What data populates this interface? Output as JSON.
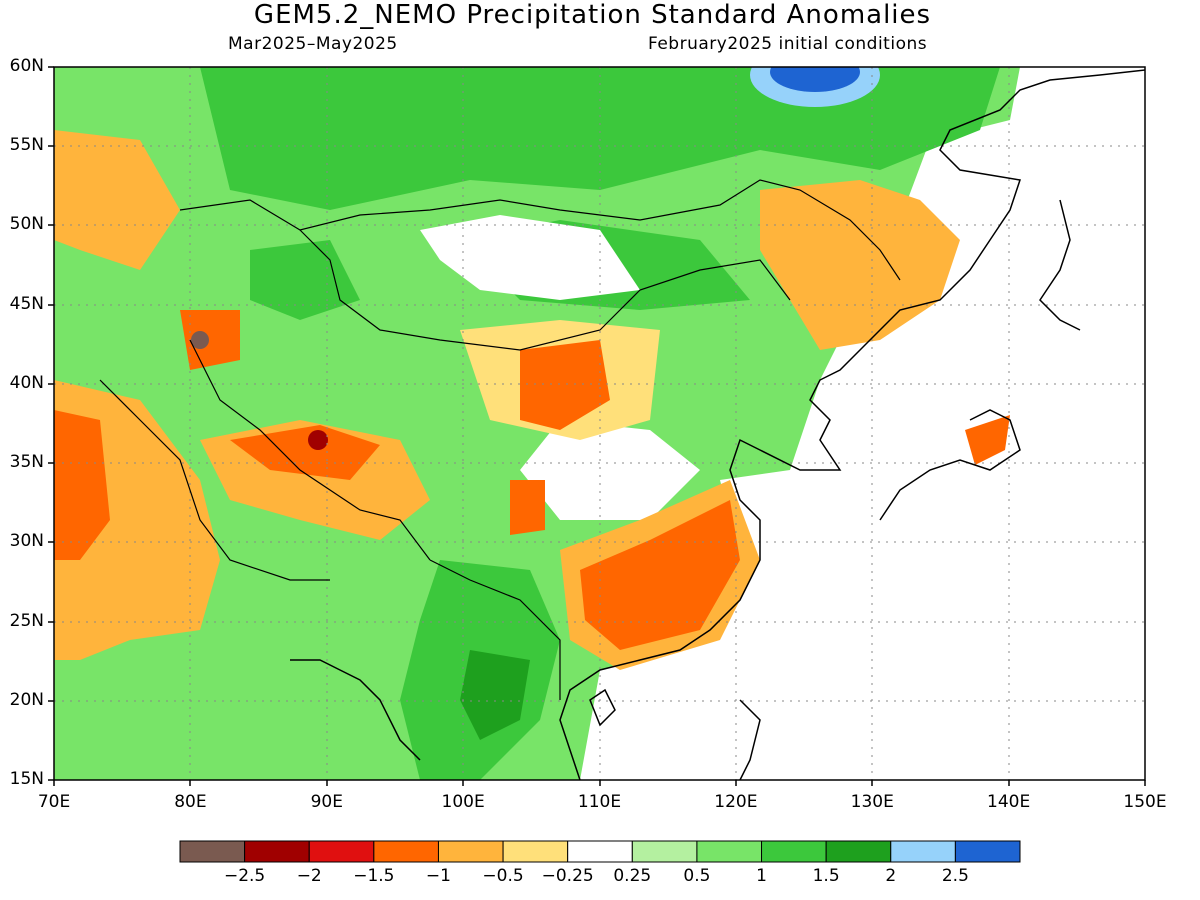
{
  "title": "GEM5.2_NEMO Precipitation Standard Anomalies",
  "subtitle_left": "Mar2025–May2025",
  "subtitle_right": "February2025 initial conditions",
  "lat_labels": [
    "60N",
    "55N",
    "50N",
    "45N",
    "40N",
    "35N",
    "30N",
    "25N",
    "20N",
    "15N"
  ],
  "lat_values": [
    60,
    55,
    50,
    45,
    40,
    35,
    30,
    25,
    20,
    15
  ],
  "lon_labels": [
    "70E",
    "80E",
    "90E",
    "100E",
    "110E",
    "120E",
    "130E",
    "140E",
    "150E"
  ],
  "lon_values": [
    70,
    80,
    90,
    100,
    110,
    120,
    130,
    140,
    150
  ],
  "map_extent": {
    "lon": [
      70,
      150
    ],
    "lat": [
      15,
      60
    ]
  },
  "colorbar": {
    "colors": [
      "#7a5a50",
      "#a00000",
      "#e01010",
      "#ff6600",
      "#ffb43c",
      "#ffe07a",
      "#ffffff",
      "#b4f0a0",
      "#78e468",
      "#3cc83c",
      "#1ea01e",
      "#96d2fa",
      "#1e64d2"
    ],
    "labels": [
      "−2.5",
      "−2",
      "−1.5",
      "−1",
      "−0.5",
      "−0.25",
      "0.25",
      "0.5",
      "1",
      "1.5",
      "2",
      "2.5"
    ]
  },
  "colors": {
    "land_default": "#78e468",
    "coast": "#000000",
    "grid": "#888888"
  }
}
